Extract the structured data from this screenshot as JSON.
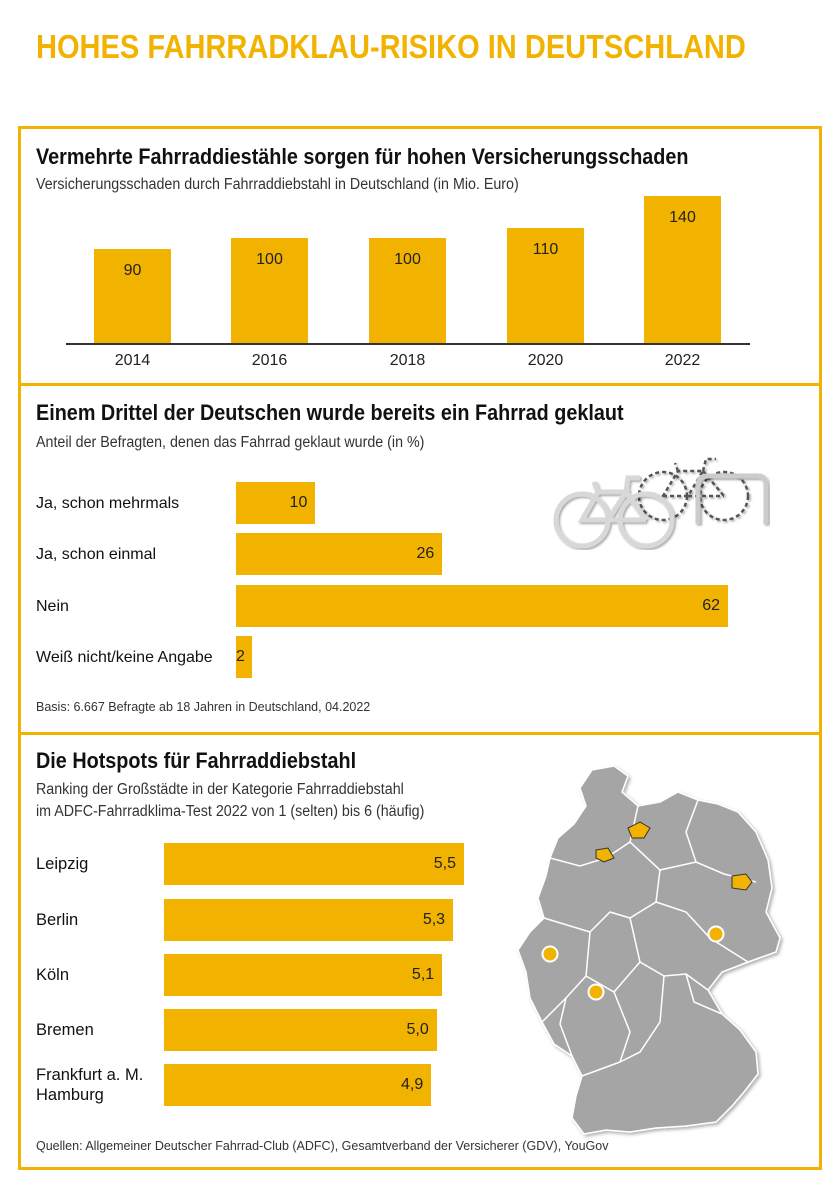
{
  "title": "HOHES FAHRRADKLAU-RISIKO IN DEUTSCHLAND",
  "chart_data": [
    {
      "type": "bar",
      "title": "Vermehrte Fahrraddiestähle sorgen für hohen Versicherungsschaden",
      "subtitle": "Versicherungsschaden durch Fahrraddiebstahl in Deutschland (in Mio. Euro)",
      "categories": [
        "2014",
        "2016",
        "2018",
        "2020",
        "2022"
      ],
      "values": [
        90,
        100,
        100,
        110,
        140
      ],
      "value_labels": [
        "90",
        "100",
        "100",
        "110",
        "140"
      ],
      "ylim": [
        0,
        140
      ],
      "grid": false,
      "color": "#f2b300"
    },
    {
      "type": "bar",
      "orientation": "horizontal",
      "title": "Einem Drittel der Deutschen wurde bereits ein Fahrrad geklaut",
      "subtitle": "Anteil der Befragten, denen das Fahrrad geklaut wurde (in %)",
      "categories": [
        "Ja, schon mehrmals",
        "Ja, schon einmal",
        "Nein",
        "Weiß nicht/keine Angabe"
      ],
      "values": [
        10,
        26,
        62,
        2
      ],
      "value_labels": [
        "10",
        "26",
        "62",
        "2"
      ],
      "xlim": [
        0,
        62
      ],
      "note": "Basis: 6.667 Befragte ab 18 Jahren in Deutschland, 04.2022",
      "illustration": "bicycle-icon",
      "color": "#f2b300"
    },
    {
      "type": "bar",
      "orientation": "horizontal",
      "title": "Die Hotspots für Fahrraddiebstahl",
      "subtitle_lines": [
        "Ranking der Großstädte in der Kategorie Fahrraddiebstahl",
        "im ADFC-Fahrradklima-Test 2022 von 1 (selten) bis 6 (häufig)"
      ],
      "categories": [
        [
          "Leipzig"
        ],
        [
          "Berlin"
        ],
        [
          "Köln"
        ],
        [
          "Bremen"
        ],
        [
          "Frankfurt a. M.",
          "Hamburg"
        ]
      ],
      "values": [
        5.5,
        5.3,
        5.1,
        5.0,
        4.9
      ],
      "value_labels": [
        "5,5",
        "5,3",
        "5,1",
        "5,0",
        "4,9"
      ],
      "xlim": [
        0,
        5.5
      ],
      "illustration": "germany-map",
      "color": "#f2b300"
    }
  ],
  "sources": "Quellen: Allgemeiner Deutscher Fahrrad-Club (ADFC), Gesamtverband der Versicherer (GDV), YouGov",
  "colors": {
    "accent": "#f2b300",
    "map_fill": "#a5a5a5",
    "map_border": "#ffffff"
  }
}
